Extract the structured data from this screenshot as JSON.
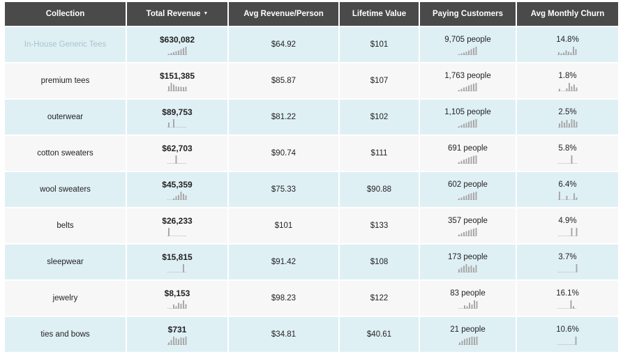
{
  "table": {
    "headers": [
      {
        "key": "collection",
        "label": "Collection"
      },
      {
        "key": "total_revenue",
        "label": "Total Revenue",
        "sorted": "desc"
      },
      {
        "key": "avg_revenue_person",
        "label": "Avg Revenue/Person"
      },
      {
        "key": "lifetime_value",
        "label": "Lifetime Value"
      },
      {
        "key": "paying_customers",
        "label": "Paying Customers"
      },
      {
        "key": "avg_monthly_churn",
        "label": "Avg Monthly Churn"
      }
    ],
    "sort_indicator_icon": "caret-down-icon",
    "row_colors": {
      "odd": "#dff0f5",
      "even": "#f7f7f7"
    },
    "rows": [
      {
        "collection": "In-House Generic Tees",
        "total_revenue": "$630,082",
        "avg_revenue_person": "$64.92",
        "lifetime_value": "$101",
        "paying_customers": "9,705 people",
        "avg_monthly_churn": "14.8%",
        "revenue_trend": [
          0.15,
          0.25,
          0.35,
          0.45,
          0.55,
          0.7,
          0.85,
          1.0
        ],
        "customers_trend": [
          0.1,
          0.2,
          0.3,
          0.4,
          0.55,
          0.7,
          0.85,
          1.0
        ],
        "churn_trend": [
          0.35,
          0.2,
          0.3,
          0.55,
          0.4,
          0.3,
          1.0,
          0.7
        ]
      },
      {
        "collection": "premium tees",
        "total_revenue": "$151,385",
        "avg_revenue_person": "$85.87",
        "lifetime_value": "$107",
        "paying_customers": "1,763 people",
        "avg_monthly_churn": "1.8%",
        "revenue_trend": [
          0.6,
          1.0,
          0.8,
          0.6,
          0.55,
          0.55,
          0.5,
          0.55
        ],
        "customers_trend": [
          0.15,
          0.3,
          0.45,
          0.55,
          0.7,
          0.8,
          0.9,
          1.0
        ],
        "churn_trend": [
          0.3,
          0,
          0,
          0.35,
          1.0,
          0.6,
          0.8,
          0.45
        ]
      },
      {
        "collection": "outerwear",
        "total_revenue": "$89,753",
        "avg_revenue_person": "$81.22",
        "lifetime_value": "$102",
        "paying_customers": "1,105 people",
        "avg_monthly_churn": "2.5%",
        "revenue_trend": [
          0.6,
          0,
          1.0,
          0,
          0,
          0,
          0,
          0
        ],
        "customers_trend": [
          0.15,
          0.3,
          0.45,
          0.55,
          0.7,
          0.8,
          0.9,
          1.0
        ],
        "churn_trend": [
          0.5,
          0.8,
          0.6,
          0.9,
          0.5,
          1.0,
          0.9,
          0.7
        ]
      },
      {
        "collection": "cotton sweaters",
        "total_revenue": "$62,703",
        "avg_revenue_person": "$90.74",
        "lifetime_value": "$111",
        "paying_customers": "691 people",
        "avg_monthly_churn": "5.8%",
        "revenue_trend": [
          0,
          0,
          0,
          1.0,
          0,
          0,
          0,
          0
        ],
        "customers_trend": [
          0.2,
          0.35,
          0.5,
          0.6,
          0.75,
          0.85,
          0.95,
          1.0
        ],
        "churn_trend": [
          0,
          0,
          0,
          0,
          0,
          1.0,
          0,
          0
        ]
      },
      {
        "collection": "wool sweaters",
        "total_revenue": "$45,359",
        "avg_revenue_person": "$75.33",
        "lifetime_value": "$90.88",
        "paying_customers": "602 people",
        "avg_monthly_churn": "6.4%",
        "revenue_trend": [
          0,
          0,
          0.2,
          0.45,
          0.6,
          1.0,
          0.75,
          0.55
        ],
        "customers_trend": [
          0.2,
          0.3,
          0.45,
          0.55,
          0.7,
          0.8,
          0.9,
          1.0
        ],
        "churn_trend": [
          1.0,
          0,
          0,
          0.5,
          0,
          0,
          0.8,
          0.3
        ]
      },
      {
        "collection": "belts",
        "total_revenue": "$26,233",
        "avg_revenue_person": "$101",
        "lifetime_value": "$133",
        "paying_customers": "357 people",
        "avg_monthly_churn": "4.9%",
        "revenue_trend": [
          1.0,
          0,
          0,
          0,
          0,
          0,
          0,
          0
        ],
        "customers_trend": [
          0.2,
          0.35,
          0.5,
          0.6,
          0.7,
          0.8,
          0.9,
          1.0
        ],
        "churn_trend": [
          0,
          0,
          0,
          0,
          0,
          1.0,
          0,
          1.0
        ]
      },
      {
        "collection": "sleepwear",
        "total_revenue": "$15,815",
        "avg_revenue_person": "$91.42",
        "lifetime_value": "$108",
        "paying_customers": "173 people",
        "avg_monthly_churn": "3.7%",
        "revenue_trend": [
          0,
          0,
          0,
          0,
          0,
          0,
          1.0,
          0
        ],
        "customers_trend": [
          0.4,
          0.6,
          0.8,
          1.0,
          0.7,
          0.85,
          0.6,
          0.9
        ],
        "churn_trend": [
          0,
          0,
          0,
          0,
          0,
          0,
          0,
          1.0
        ]
      },
      {
        "collection": "jewelry",
        "total_revenue": "$8,153",
        "avg_revenue_person": "$98.23",
        "lifetime_value": "$122",
        "paying_customers": "83 people",
        "avg_monthly_churn": "16.1%",
        "revenue_trend": [
          0,
          0,
          0.5,
          0.3,
          0.7,
          0.6,
          1.0,
          0.55
        ],
        "customers_trend": [
          0,
          0,
          0.4,
          0.3,
          0.7,
          0.5,
          1.0,
          0.9
        ],
        "churn_trend": [
          0,
          0,
          0,
          0,
          0,
          1.0,
          0.3,
          0
        ]
      },
      {
        "collection": "ties and bows",
        "total_revenue": "$731",
        "avg_revenue_person": "$34.81",
        "lifetime_value": "$40.61",
        "paying_customers": "21 people",
        "avg_monthly_churn": "10.6%",
        "revenue_trend": [
          0.3,
          0.6,
          1.0,
          0.8,
          0.7,
          0.9,
          0.85,
          1.0
        ],
        "customers_trend": [
          0.3,
          0.5,
          0.7,
          0.8,
          0.9,
          1.0,
          0.95,
          1.0
        ],
        "churn_trend": [
          0,
          0,
          0,
          0,
          0,
          0,
          0,
          1.0
        ]
      }
    ]
  }
}
